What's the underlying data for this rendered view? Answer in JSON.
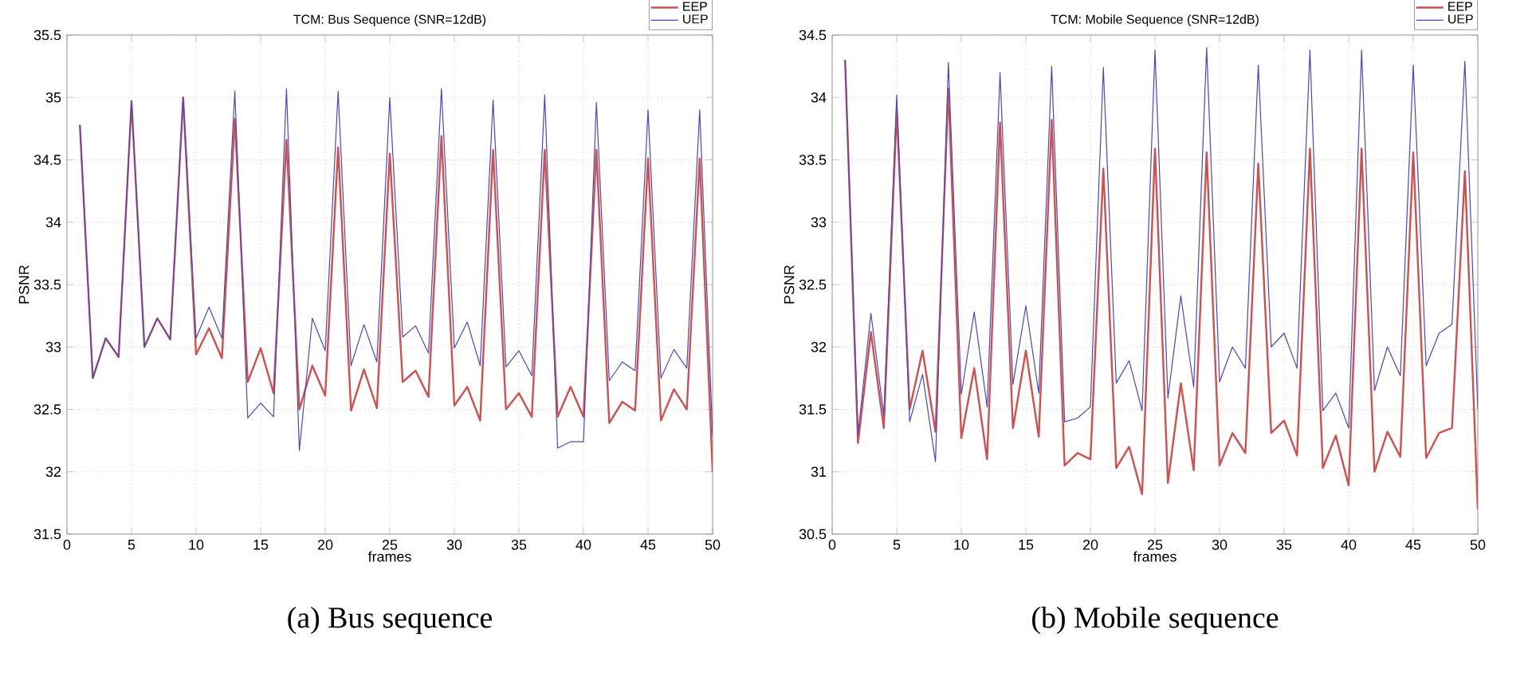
{
  "chart_data": [
    {
      "type": "line",
      "title": "TCM: Bus Sequence (SNR=12dB)",
      "xlabel": "frames",
      "ylabel": "PSNR",
      "x": [
        1,
        2,
        3,
        4,
        5,
        6,
        7,
        8,
        9,
        10,
        11,
        12,
        13,
        14,
        15,
        16,
        17,
        18,
        19,
        20,
        21,
        22,
        23,
        24,
        25,
        26,
        27,
        28,
        29,
        30,
        31,
        32,
        33,
        34,
        35,
        36,
        37,
        38,
        39,
        40,
        41,
        42,
        43,
        44,
        45,
        46,
        47,
        48,
        49,
        50
      ],
      "series": [
        {
          "name": "EEP",
          "color": "#d05050",
          "values": [
            34.78,
            32.75,
            33.07,
            32.92,
            34.97,
            33.0,
            33.23,
            33.06,
            35.0,
            32.94,
            33.15,
            32.91,
            34.83,
            32.72,
            32.99,
            32.63,
            34.66,
            32.5,
            32.85,
            32.61,
            34.6,
            32.49,
            32.82,
            32.51,
            34.55,
            32.72,
            32.81,
            32.6,
            34.69,
            32.53,
            32.68,
            32.41,
            34.58,
            32.5,
            32.63,
            32.44,
            34.58,
            32.44,
            32.68,
            32.44,
            34.58,
            32.39,
            32.56,
            32.49,
            34.51,
            32.41,
            32.66,
            32.5,
            34.51,
            32.0
          ]
        },
        {
          "name": "UEP",
          "color": "#4848c0",
          "values": [
            34.78,
            32.75,
            33.07,
            32.92,
            34.97,
            33.0,
            33.23,
            33.06,
            35.0,
            33.07,
            33.32,
            33.07,
            35.05,
            32.43,
            32.55,
            32.44,
            35.07,
            32.17,
            33.23,
            32.97,
            35.05,
            32.85,
            33.18,
            32.88,
            35.0,
            33.08,
            33.17,
            32.95,
            35.07,
            32.99,
            33.2,
            32.85,
            34.98,
            32.84,
            32.97,
            32.77,
            35.02,
            32.19,
            32.24,
            32.24,
            34.96,
            32.73,
            32.88,
            32.81,
            34.9,
            32.75,
            32.98,
            32.83,
            34.9,
            32.29
          ]
        }
      ],
      "xlim": [
        0,
        50
      ],
      "ylim": [
        31.5,
        35.5
      ],
      "xticks": [
        0,
        5,
        10,
        15,
        20,
        25,
        30,
        35,
        40,
        45,
        50
      ],
      "yticks": [
        31.5,
        32,
        32.5,
        33,
        33.5,
        34,
        34.5,
        35,
        35.5
      ],
      "grid": true,
      "legend": "top right",
      "annotations": [
        "(a)  Bus sequence"
      ]
    },
    {
      "type": "line",
      "title": "TCM: Mobile Sequence (SNR=12dB)",
      "xlabel": "frames",
      "ylabel": "PSNR",
      "x": [
        1,
        2,
        3,
        4,
        5,
        6,
        7,
        8,
        9,
        10,
        11,
        12,
        13,
        14,
        15,
        16,
        17,
        18,
        19,
        20,
        21,
        22,
        23,
        24,
        25,
        26,
        27,
        28,
        29,
        30,
        31,
        32,
        33,
        34,
        35,
        36,
        37,
        38,
        39,
        40,
        41,
        42,
        43,
        44,
        45,
        46,
        47,
        48,
        49,
        50
      ],
      "series": [
        {
          "name": "EEP",
          "color": "#d05050",
          "values": [
            34.3,
            31.23,
            32.12,
            31.35,
            33.9,
            31.5,
            31.97,
            31.32,
            34.07,
            31.27,
            31.83,
            31.1,
            33.8,
            31.35,
            31.97,
            31.28,
            33.82,
            31.05,
            31.15,
            31.1,
            33.43,
            31.03,
            31.2,
            30.82,
            33.59,
            30.91,
            31.71,
            31.01,
            33.56,
            31.05,
            31.31,
            31.15,
            33.47,
            31.31,
            31.41,
            31.13,
            33.59,
            31.03,
            31.29,
            30.89,
            33.59,
            31.0,
            31.32,
            31.12,
            33.56,
            31.11,
            31.31,
            31.35,
            33.41,
            30.7
          ]
        },
        {
          "name": "UEP",
          "color": "#4848c0",
          "values": [
            34.3,
            31.3,
            32.27,
            31.45,
            34.02,
            31.4,
            31.78,
            31.08,
            34.28,
            31.62,
            32.28,
            31.52,
            34.2,
            31.7,
            32.33,
            31.63,
            34.25,
            31.4,
            31.43,
            31.52,
            34.24,
            31.71,
            31.89,
            31.49,
            34.38,
            31.59,
            32.41,
            31.68,
            34.4,
            31.72,
            32.0,
            31.83,
            34.26,
            32.0,
            32.11,
            31.83,
            34.38,
            31.49,
            31.63,
            31.35,
            34.38,
            31.65,
            32.0,
            31.77,
            34.26,
            31.85,
            32.11,
            32.18,
            34.29,
            31.5
          ]
        }
      ],
      "xlim": [
        0,
        50
      ],
      "ylim": [
        30.5,
        34.5
      ],
      "xticks": [
        0,
        5,
        10,
        15,
        20,
        25,
        30,
        35,
        40,
        45,
        50
      ],
      "yticks": [
        30.5,
        31,
        31.5,
        32,
        32.5,
        33,
        33.5,
        34,
        34.5
      ],
      "grid": true,
      "legend": "top right",
      "annotations": [
        "(b)  Mobile sequence"
      ]
    }
  ]
}
